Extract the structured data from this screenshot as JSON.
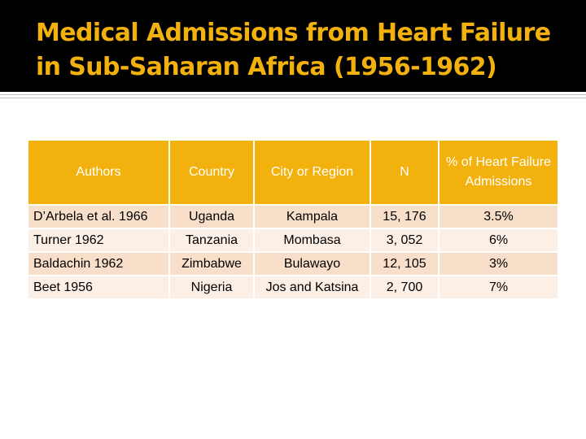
{
  "title": "Medical Admissions from Heart Failure in Sub-Saharan Africa (1956-1962)",
  "colors": {
    "accent": "#f2b10c",
    "title_band": "#000000",
    "row_dark": "#f8dfc9",
    "row_light": "#fcefe5"
  },
  "table": {
    "headers": [
      "Authors",
      "Country",
      "City or Region",
      "N",
      "% of Heart Failure Admissions"
    ],
    "rows": [
      [
        "D’Arbela et al. 1966",
        "Uganda",
        "Kampala",
        "15, 176",
        "3.5%"
      ],
      [
        "Turner 1962",
        "Tanzania",
        "Mombasa",
        "3, 052",
        "6%"
      ],
      [
        "Baldachin 1962",
        "Zimbabwe",
        "Bulawayo",
        "12, 105",
        "3%"
      ],
      [
        "Beet 1956",
        "Nigeria",
        "Jos and Katsina",
        "2, 700",
        "7%"
      ]
    ]
  }
}
